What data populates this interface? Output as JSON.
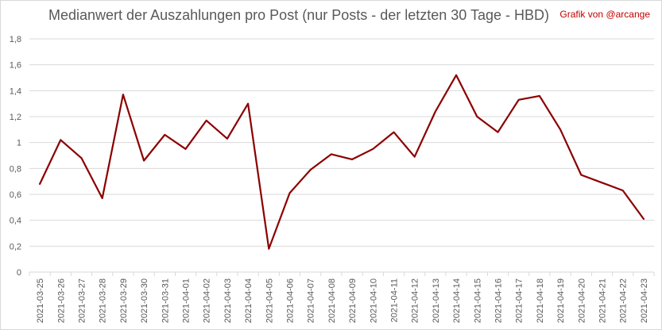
{
  "chart_data": {
    "type": "line",
    "title": "Medianwert der Auszahlungen pro Post (nur Posts - der letzten 30 Tage - HBD)",
    "credit": "Grafik von @arcange",
    "xlabel": "",
    "ylabel": "",
    "ylim": [
      0,
      1.8
    ],
    "yticks": [
      0,
      0.2,
      0.4,
      0.6,
      0.8,
      1.0,
      1.2,
      1.4,
      1.6,
      1.8
    ],
    "ytick_labels": [
      "0",
      "0,2",
      "0,4",
      "0,6",
      "0,8",
      "1",
      "1,2",
      "1,4",
      "1,6",
      "1,8"
    ],
    "grid": true,
    "legend": "none",
    "line_color": "#8b0000",
    "categories": [
      "2021-03-25",
      "2021-03-26",
      "2021-03-27",
      "2021-03-28",
      "2021-03-29",
      "2021-03-30",
      "2021-03-31",
      "2021-04-01",
      "2021-04-02",
      "2021-04-03",
      "2021-04-04",
      "2021-04-05",
      "2021-04-06",
      "2021-04-07",
      "2021-04-08",
      "2021-04-09",
      "2021-04-10",
      "2021-04-11",
      "2021-04-12",
      "2021-04-13",
      "2021-04-14",
      "2021-04-15",
      "2021-04-16",
      "2021-04-17",
      "2021-04-18",
      "2021-04-19",
      "2021-04-20",
      "2021-04-21",
      "2021-04-22",
      "2021-04-23"
    ],
    "values": [
      0.68,
      1.02,
      0.88,
      0.57,
      1.37,
      0.86,
      1.06,
      0.95,
      1.17,
      1.03,
      1.3,
      0.18,
      0.61,
      0.79,
      0.91,
      0.87,
      0.95,
      1.08,
      0.89,
      1.24,
      1.52,
      1.2,
      1.08,
      1.33,
      1.36,
      1.1,
      0.75,
      0.69,
      0.63,
      0.41
    ]
  }
}
